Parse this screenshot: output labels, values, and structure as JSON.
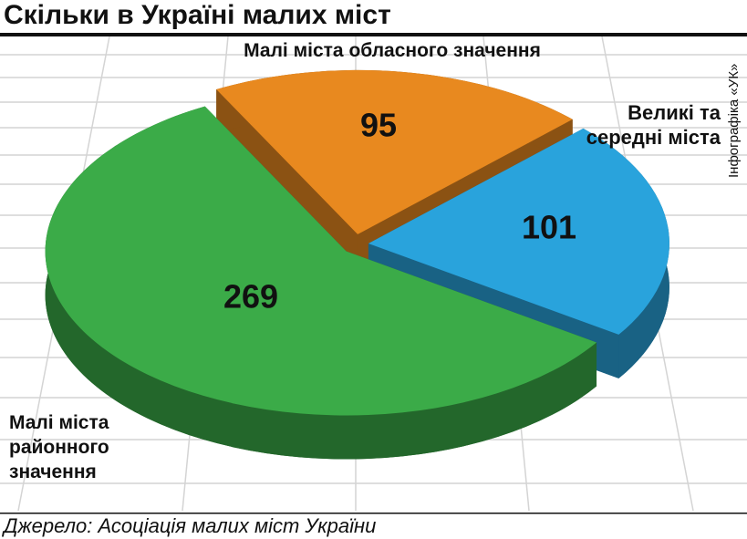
{
  "chart_data": {
    "type": "pie3d",
    "title": "Скільки в Україні малих міст",
    "categories": [
      "Малі міста обласного значення",
      "Великі та середні міста",
      "Малі міста районного значення"
    ],
    "values": [
      95,
      101,
      269
    ],
    "colors": [
      "#e8891f",
      "#29a3dc",
      "#3bab48"
    ],
    "source": "Джерело: Асоціація малих міст України",
    "credit": "Інфографіка «УК»"
  }
}
